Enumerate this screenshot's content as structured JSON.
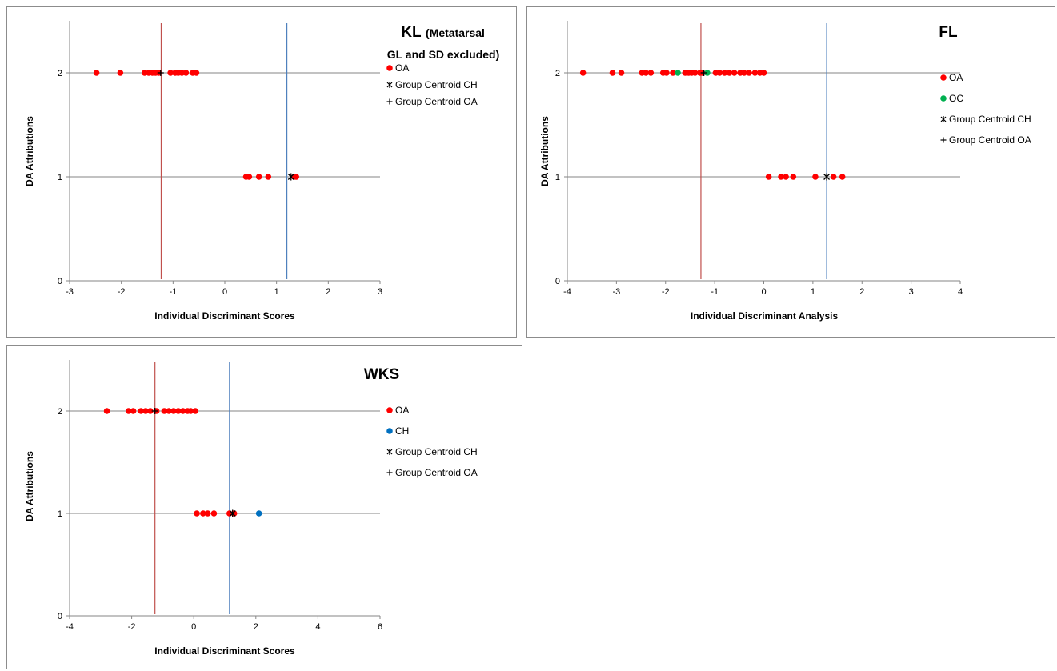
{
  "chart_data": [
    {
      "type": "scatter",
      "title": "KL",
      "subtitle_line1": "(Metatarsal",
      "subtitle_line2": "GL and SD excluded)",
      "xlabel": "Individual Discriminant Scores",
      "ylabel": "DA Attributions",
      "xlim": [
        -3,
        3
      ],
      "ylim": [
        0,
        2.5
      ],
      "xticks": [
        -3,
        -2,
        -1,
        0,
        1,
        2,
        3
      ],
      "yticks": [
        0,
        1,
        2
      ],
      "xtick_labels": [
        "-3",
        "-2",
        "-1",
        "0",
        "1",
        "2",
        "3"
      ],
      "ytick_labels": [
        "0",
        "1",
        "2"
      ],
      "gridlines_y": [
        1,
        2
      ],
      "vlines": [
        {
          "x": -1.23,
          "color": "#c0504d"
        },
        {
          "x": 1.2,
          "color": "#4f81bd"
        }
      ],
      "series": [
        {
          "name": "OA",
          "marker": "dot",
          "color": "#ff0000",
          "points": [
            [
              -2.48,
              2
            ],
            [
              -2.02,
              2
            ],
            [
              -1.55,
              2
            ],
            [
              -1.47,
              2
            ],
            [
              -1.4,
              2
            ],
            [
              -1.34,
              2
            ],
            [
              -1.28,
              2
            ],
            [
              -1.05,
              2
            ],
            [
              -0.96,
              2
            ],
            [
              -0.9,
              2
            ],
            [
              -0.83,
              2
            ],
            [
              -0.75,
              2
            ],
            [
              -0.62,
              2
            ],
            [
              -0.55,
              2
            ],
            [
              0.41,
              1
            ],
            [
              0.47,
              1
            ],
            [
              0.66,
              1
            ],
            [
              0.84,
              1
            ],
            [
              1.34,
              1
            ],
            [
              1.38,
              1
            ]
          ]
        },
        {
          "name": "Group Centroid CH",
          "marker": "star",
          "color": "#000000",
          "points": [
            [
              1.28,
              1
            ]
          ]
        },
        {
          "name": "Group Centroid OA",
          "marker": "plus",
          "color": "#000000",
          "points": [
            [
              -1.24,
              2
            ]
          ]
        }
      ]
    },
    {
      "type": "scatter",
      "title": "FL",
      "xlabel": "Individual Discriminant Analysis",
      "ylabel": "DA Attributions",
      "xlim": [
        -4,
        4
      ],
      "ylim": [
        0,
        2.5
      ],
      "xticks": [
        -4,
        -3,
        -2,
        -1,
        0,
        1,
        2,
        3,
        4
      ],
      "yticks": [
        0,
        1,
        2
      ],
      "xtick_labels": [
        "-4",
        "-3",
        "-2",
        "-1",
        "0",
        "1",
        "2",
        "3",
        "4"
      ],
      "ytick_labels": [
        "0",
        "1",
        "2"
      ],
      "gridlines_y": [
        1,
        2
      ],
      "vlines": [
        {
          "x": -1.28,
          "color": "#c0504d"
        },
        {
          "x": 1.28,
          "color": "#4f81bd"
        }
      ],
      "series": [
        {
          "name": "OA",
          "marker": "dot",
          "color": "#ff0000",
          "points": [
            [
              -3.68,
              2
            ],
            [
              -3.08,
              2
            ],
            [
              -2.9,
              2
            ],
            [
              -2.48,
              2
            ],
            [
              -2.4,
              2
            ],
            [
              -2.3,
              2
            ],
            [
              -2.05,
              2
            ],
            [
              -1.98,
              2
            ],
            [
              -1.85,
              2
            ],
            [
              -1.6,
              2
            ],
            [
              -1.53,
              2
            ],
            [
              -1.47,
              2
            ],
            [
              -1.4,
              2
            ],
            [
              -1.3,
              2
            ],
            [
              -1.25,
              2
            ],
            [
              -0.98,
              2
            ],
            [
              -0.9,
              2
            ],
            [
              -0.8,
              2
            ],
            [
              -0.7,
              2
            ],
            [
              -0.6,
              2
            ],
            [
              -0.48,
              2
            ],
            [
              -0.4,
              2
            ],
            [
              -0.3,
              2
            ],
            [
              -0.18,
              2
            ],
            [
              -0.08,
              2
            ],
            [
              0,
              2
            ],
            [
              0.1,
              1
            ],
            [
              0.35,
              1
            ],
            [
              0.45,
              1
            ],
            [
              0.6,
              1
            ],
            [
              1.05,
              1
            ],
            [
              1.42,
              1
            ],
            [
              1.6,
              1
            ]
          ]
        },
        {
          "name": "OC",
          "marker": "dot",
          "color": "#00b050",
          "points": [
            [
              -1.75,
              2
            ],
            [
              -1.15,
              2
            ]
          ]
        },
        {
          "name": "Group Centroid CH",
          "marker": "star",
          "color": "#000000",
          "points": [
            [
              1.28,
              1
            ]
          ]
        },
        {
          "name": "Group Centroid OA",
          "marker": "plus",
          "color": "#000000",
          "points": [
            [
              -1.22,
              2
            ]
          ]
        }
      ]
    },
    {
      "type": "scatter",
      "title": "WKS",
      "xlabel": "Individual Discriminant Scores",
      "ylabel": "DA Attributions",
      "xlim": [
        -4,
        6
      ],
      "ylim": [
        0,
        2.5
      ],
      "xticks": [
        -4,
        -2,
        0,
        2,
        4,
        6
      ],
      "yticks": [
        0,
        1,
        2
      ],
      "xtick_labels": [
        "-4",
        "-2",
        "0",
        "2",
        "4",
        "6"
      ],
      "ytick_labels": [
        "0",
        "1",
        "2"
      ],
      "gridlines_y": [
        1,
        2
      ],
      "vlines": [
        {
          "x": -1.25,
          "color": "#c0504d"
        },
        {
          "x": 1.15,
          "color": "#4f81bd"
        }
      ],
      "series": [
        {
          "name": "OA",
          "marker": "dot",
          "color": "#ff0000",
          "points": [
            [
              -2.8,
              2
            ],
            [
              -2.1,
              2
            ],
            [
              -1.95,
              2
            ],
            [
              -1.7,
              2
            ],
            [
              -1.55,
              2
            ],
            [
              -1.4,
              2
            ],
            [
              -1.2,
              2
            ],
            [
              -0.95,
              2
            ],
            [
              -0.8,
              2
            ],
            [
              -0.65,
              2
            ],
            [
              -0.5,
              2
            ],
            [
              -0.35,
              2
            ],
            [
              -0.2,
              2
            ],
            [
              -0.1,
              2
            ],
            [
              0.05,
              2
            ],
            [
              0.1,
              1
            ],
            [
              0.3,
              1
            ],
            [
              0.45,
              1
            ],
            [
              0.65,
              1
            ],
            [
              1.15,
              1
            ],
            [
              1.3,
              1
            ]
          ]
        },
        {
          "name": "CH",
          "marker": "dot",
          "color": "#0070c0",
          "points": [
            [
              2.1,
              1
            ]
          ]
        },
        {
          "name": "Group Centroid CH",
          "marker": "star",
          "color": "#000000",
          "points": [
            [
              1.25,
              1
            ]
          ]
        },
        {
          "name": "Group Centroid OA",
          "marker": "plus",
          "color": "#000000",
          "points": [
            [
              -1.25,
              2
            ]
          ]
        }
      ]
    }
  ]
}
